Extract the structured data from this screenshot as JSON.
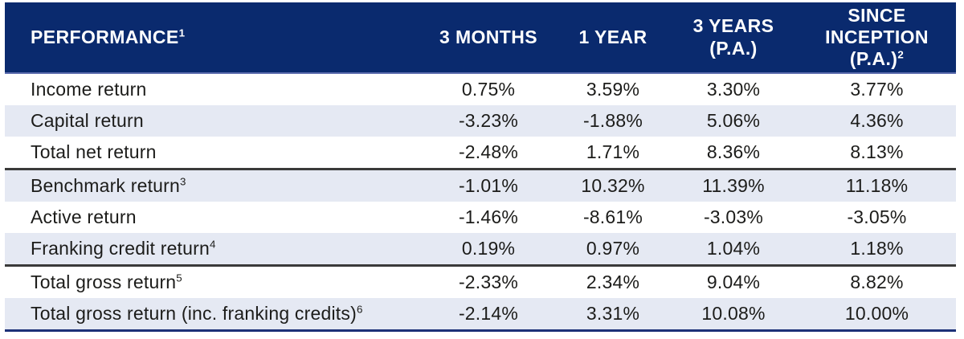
{
  "table": {
    "header": {
      "title": "PERFORMANCE",
      "title_sup": "1",
      "columns": [
        {
          "label": "3 MONTHS",
          "sup": ""
        },
        {
          "label": "1 YEAR",
          "sup": ""
        },
        {
          "label": "3 YEARS (P.A.)",
          "sup": ""
        },
        {
          "label": "SINCE INCEPTION (P.A.)",
          "sup": "2"
        }
      ]
    },
    "rows": [
      {
        "label": "Income return",
        "sup": "",
        "values": [
          "0.75%",
          "3.59%",
          "3.30%",
          "3.77%"
        ]
      },
      {
        "label": "Capital return",
        "sup": "",
        "values": [
          "-3.23%",
          "-1.88%",
          "5.06%",
          "4.36%"
        ]
      },
      {
        "label": "Total net return",
        "sup": "",
        "values": [
          "-2.48%",
          "1.71%",
          "8.36%",
          "8.13%"
        ]
      },
      {
        "label": "Benchmark return",
        "sup": "3",
        "values": [
          "-1.01%",
          "10.32%",
          "11.39%",
          "11.18%"
        ]
      },
      {
        "label": "Active return",
        "sup": "",
        "values": [
          "-1.46%",
          "-8.61%",
          "-3.03%",
          "-3.05%"
        ]
      },
      {
        "label": "Franking credit return",
        "sup": "4",
        "values": [
          "0.19%",
          "0.97%",
          "1.04%",
          "1.18%"
        ]
      },
      {
        "label": "Total gross return",
        "sup": "5",
        "values": [
          "-2.33%",
          "2.34%",
          "9.04%",
          "8.82%"
        ]
      },
      {
        "label": "Total gross return (inc. franking credits)",
        "sup": "6",
        "values": [
          "-2.14%",
          "3.31%",
          "10.08%",
          "10.00%"
        ]
      }
    ]
  },
  "colors": {
    "header_background": "#0a2a6e",
    "header_text": "#ffffff",
    "shaded_row_background": "#e5e9f3",
    "header_underline": "#5b6bad",
    "section_divider": "#3a3a3a",
    "bottom_border": "#1c3178",
    "body_text": "#1c1c1a"
  }
}
